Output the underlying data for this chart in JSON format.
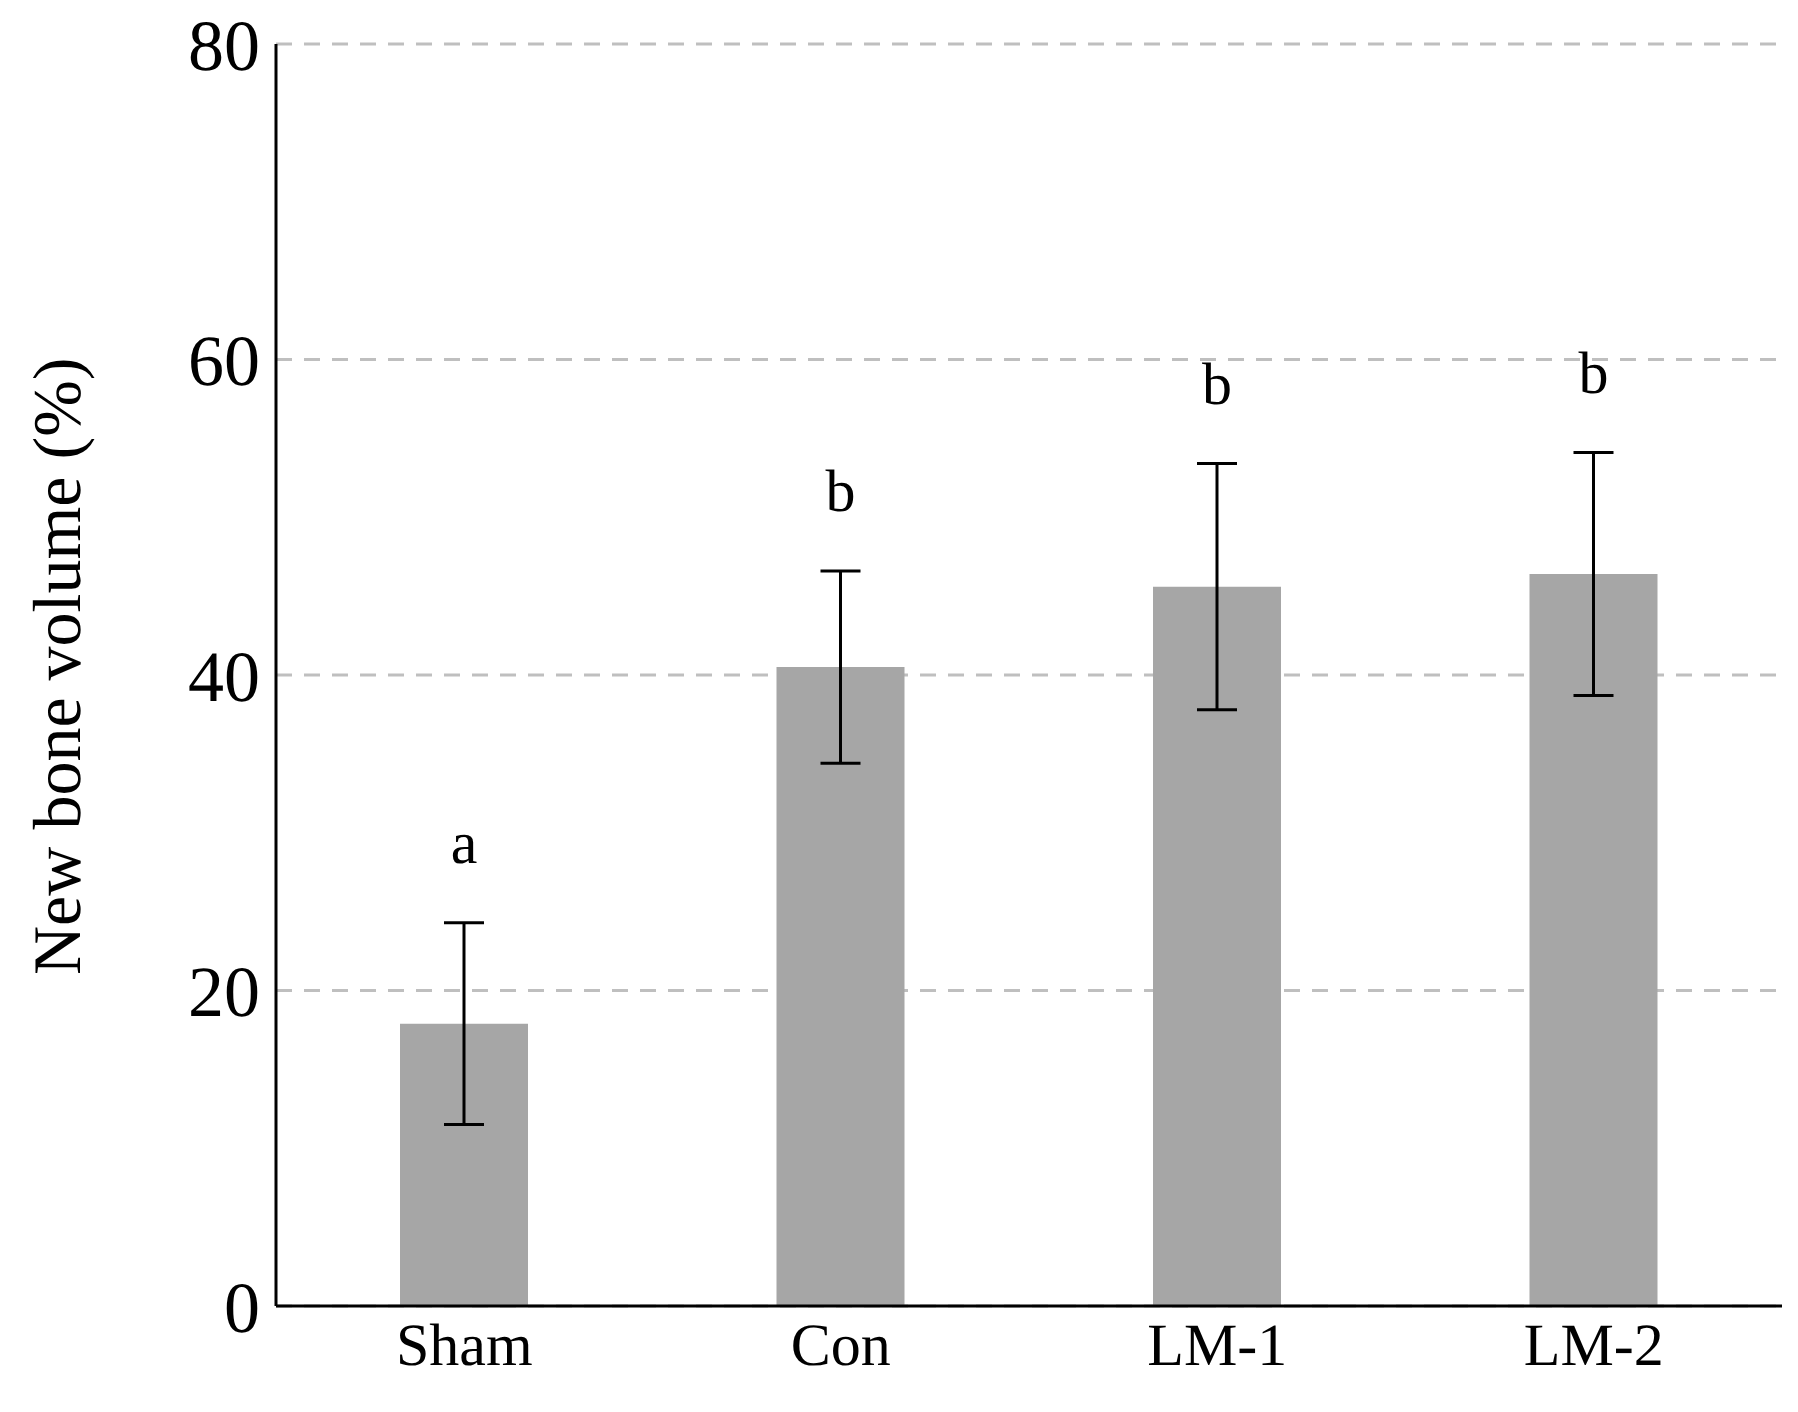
{
  "chart_data": {
    "type": "bar",
    "ylabel": "New bone volume (%)",
    "categories": [
      "Sham",
      "Con",
      "LM-1",
      "LM-2"
    ],
    "values": [
      17.9,
      40.5,
      45.6,
      46.4
    ],
    "errors": [
      6.4,
      6.1,
      7.8,
      7.7
    ],
    "color": "#a6a6a6",
    "ylim": [
      0,
      80
    ],
    "yticks": [
      0,
      20,
      40,
      60,
      80
    ],
    "grid": "y",
    "annotations": [
      "a",
      "b",
      "b",
      "b"
    ]
  }
}
